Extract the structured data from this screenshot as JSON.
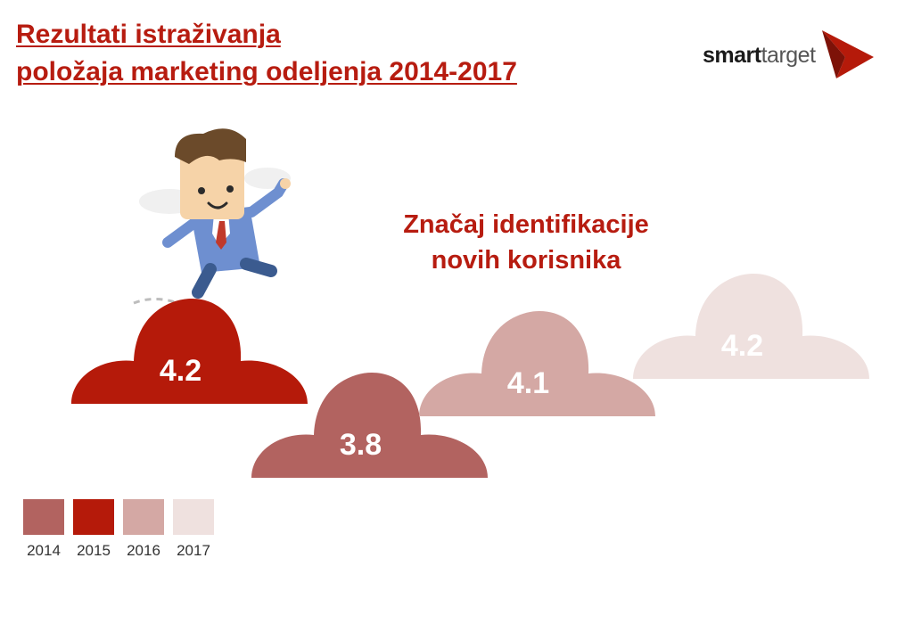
{
  "header": {
    "title_line1": "Rezultati istraživanja",
    "title_line2": "položaja marketing odeljenja 2014-2017"
  },
  "logo": {
    "text_smart": "smart",
    "text_target": "target",
    "icon": "red-arrow-icon"
  },
  "colors": {
    "title": "#b71c10",
    "2014": "#b26360",
    "2015": "#b51a0a",
    "2016": "#d4a8a4",
    "2017": "#efe1df"
  },
  "chart_data": {
    "type": "bar",
    "title": "Značaj identifikacije novih korisnika",
    "title_line1": "Značaj identifikacije",
    "title_line2": "novih korisnika",
    "categories": [
      "2014",
      "2015",
      "2016",
      "2017"
    ],
    "values": [
      3.8,
      4.2,
      4.1,
      4.2
    ],
    "data_labels": [
      "3.8",
      "4.2",
      "4.1",
      "4.2"
    ],
    "legend": [
      "2014",
      "2015",
      "2016",
      "2017"
    ],
    "legend_position": "bottom-left",
    "mark": "cloud",
    "grid": false
  }
}
